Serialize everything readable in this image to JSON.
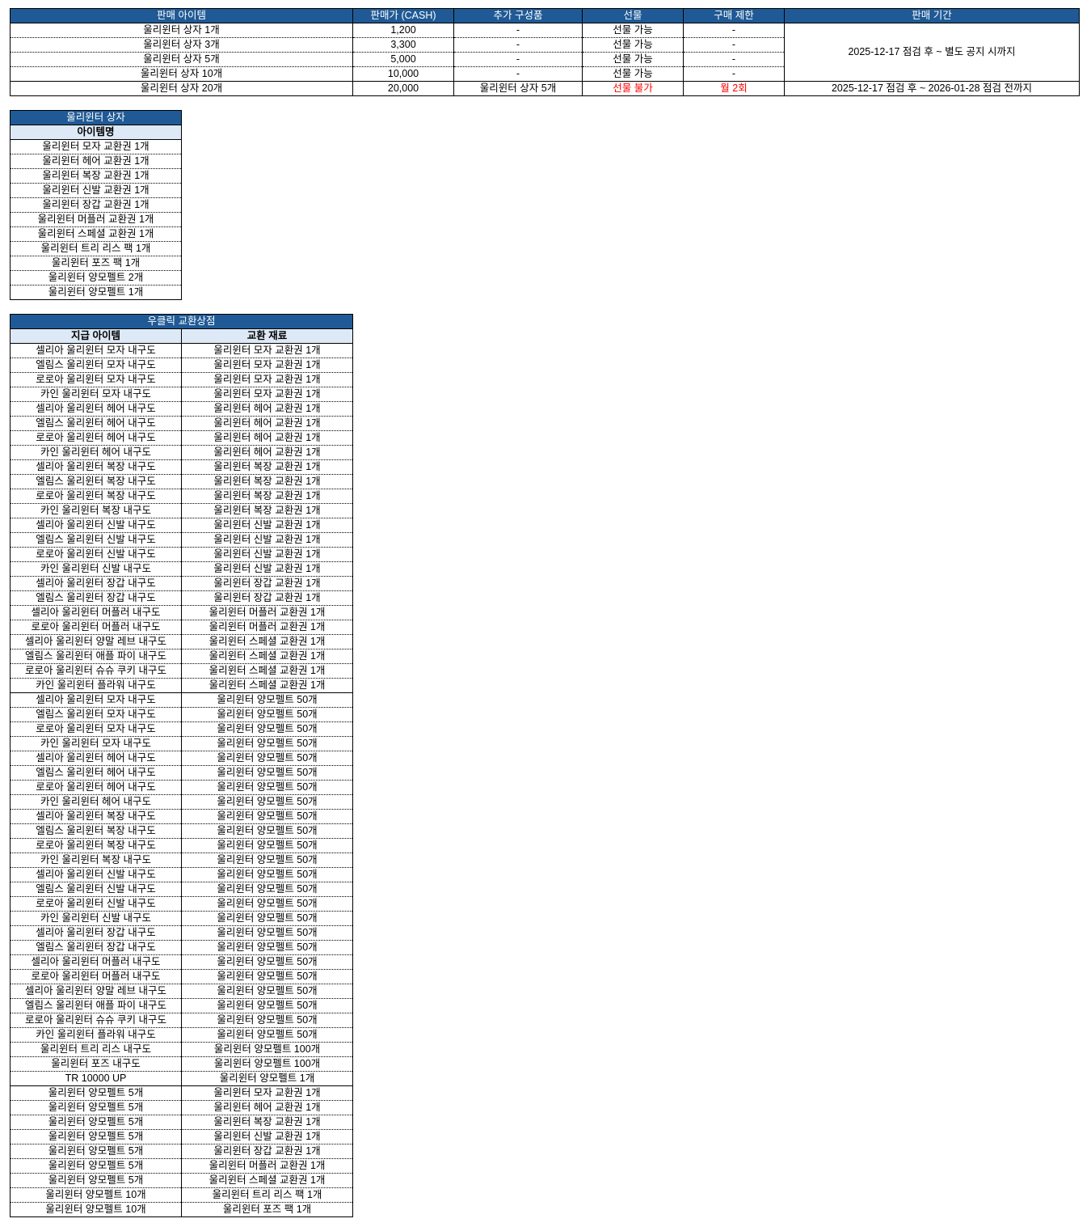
{
  "sales": {
    "headers": [
      "판매 아이템",
      "판매가 (CASH)",
      "추가 구성품",
      "선물",
      "구매 제한",
      "판매 기간"
    ],
    "rows": [
      {
        "item": "울리윈터 상자 1개",
        "price": "1,200",
        "extra": "-",
        "gift": "선물 가능",
        "limit": "-"
      },
      {
        "item": "울리윈터 상자 3개",
        "price": "3,300",
        "extra": "-",
        "gift": "선물 가능",
        "limit": "-"
      },
      {
        "item": "울리윈터 상자 5개",
        "price": "5,000",
        "extra": "-",
        "gift": "선물 가능",
        "limit": "-"
      },
      {
        "item": "울리윈터 상자 10개",
        "price": "10,000",
        "extra": "-",
        "gift": "선물 가능",
        "limit": "-"
      },
      {
        "item": "울리윈터 상자 20개",
        "price": "20,000",
        "extra": "울리윈터 상자 5개",
        "gift": "선물 불가",
        "limit": "월 2회"
      }
    ],
    "period_1": "2025-12-17 점검 후 ~ 별도 공지 시까지",
    "period_2": "2025-12-17 점검 후 ~ 2026-01-28 점검 전까지",
    "highlight_color": "#ff0000"
  },
  "box": {
    "title": "울리윈터 상자",
    "header": "아이템명",
    "items": [
      "울리윈터 모자 교환권 1개",
      "울리윈터 헤어 교환권 1개",
      "울리윈터 복장 교환권 1개",
      "울리윈터 신발 교환권 1개",
      "울리윈터 장갑 교환권 1개",
      "울리윈터 머플러 교환권 1개",
      "울리윈터 스페셜 교환권 1개",
      "울리윈터 트리 리스 팩 1개",
      "울리윈터 포즈 팩 1개",
      "울리윈터 양모펠트 2개",
      "울리윈터 양모펠트 1개"
    ]
  },
  "exchange": {
    "title": "우클릭 교환상점",
    "headers": [
      "지급 아이템",
      "교환 재료"
    ],
    "groups": [
      [
        [
          "셀리아 울리윈터 모자 내구도",
          "울리윈터 모자 교환권 1개"
        ],
        [
          "엘림스 울리윈터 모자 내구도",
          "울리윈터 모자 교환권 1개"
        ],
        [
          "로로아 울리윈터 모자 내구도",
          "울리윈터 모자 교환권 1개"
        ],
        [
          "카인 울리윈터 모자 내구도",
          "울리윈터 모자 교환권 1개"
        ],
        [
          "셀리아 울리윈터 헤어 내구도",
          "울리윈터 헤어 교환권 1개"
        ],
        [
          "엘림스 울리윈터 헤어 내구도",
          "울리윈터 헤어 교환권 1개"
        ],
        [
          "로로아 울리윈터 헤어 내구도",
          "울리윈터 헤어 교환권 1개"
        ],
        [
          "카인 울리윈터 헤어 내구도",
          "울리윈터 헤어 교환권 1개"
        ],
        [
          "셀리아 울리윈터 복장 내구도",
          "울리윈터 복장 교환권 1개"
        ],
        [
          "엘림스 울리윈터 복장 내구도",
          "울리윈터 복장 교환권 1개"
        ],
        [
          "로로아 울리윈터 복장 내구도",
          "울리윈터 복장 교환권 1개"
        ],
        [
          "카인 울리윈터 복장 내구도",
          "울리윈터 복장 교환권 1개"
        ],
        [
          "셀리아 울리윈터 신발 내구도",
          "울리윈터 신발 교환권 1개"
        ],
        [
          "엘림스 울리윈터 신발 내구도",
          "울리윈터 신발 교환권 1개"
        ],
        [
          "로로아 울리윈터 신발 내구도",
          "울리윈터 신발 교환권 1개"
        ],
        [
          "카인 울리윈터 신발 내구도",
          "울리윈터 신발 교환권 1개"
        ],
        [
          "셀리아 울리윈터 장갑 내구도",
          "울리윈터 장갑 교환권 1개"
        ],
        [
          "엘림스 울리윈터 장갑 내구도",
          "울리윈터 장갑 교환권 1개"
        ],
        [
          "셀리아 울리윈터 머플러 내구도",
          "울리윈터 머플러 교환권 1개"
        ],
        [
          "로로아 울리윈터 머플러 내구도",
          "울리윈터 머플러 교환권 1개"
        ],
        [
          "셀리아 울리윈터 양말 레브 내구도",
          "울리윈터 스페셜 교환권 1개"
        ],
        [
          "엘림스 울리윈터 애플 파이 내구도",
          "울리윈터 스페셜 교환권 1개"
        ],
        [
          "로로아 울리윈터 슈슈 쿠키 내구도",
          "울리윈터 스페셜 교환권 1개"
        ],
        [
          "카인 울리윈터 플라워 내구도",
          "울리윈터 스페셜 교환권 1개"
        ]
      ],
      [
        [
          "셀리아 울리윈터 모자 내구도",
          "울리윈터 양모펠트 50개"
        ],
        [
          "엘림스 울리윈터 모자 내구도",
          "울리윈터 양모펠트 50개"
        ],
        [
          "로로아 울리윈터 모자 내구도",
          "울리윈터 양모펠트 50개"
        ],
        [
          "카인 울리윈터 모자 내구도",
          "울리윈터 양모펠트 50개"
        ],
        [
          "셀리아 울리윈터 헤어 내구도",
          "울리윈터 양모펠트 50개"
        ],
        [
          "엘림스 울리윈터 헤어 내구도",
          "울리윈터 양모펠트 50개"
        ],
        [
          "로로아 울리윈터 헤어 내구도",
          "울리윈터 양모펠트 50개"
        ],
        [
          "카인 울리윈터 헤어 내구도",
          "울리윈터 양모펠트 50개"
        ],
        [
          "셀리아 울리윈터 복장 내구도",
          "울리윈터 양모펠트 50개"
        ],
        [
          "엘림스 울리윈터 복장 내구도",
          "울리윈터 양모펠트 50개"
        ],
        [
          "로로아 울리윈터 복장 내구도",
          "울리윈터 양모펠트 50개"
        ],
        [
          "카인 울리윈터 복장 내구도",
          "울리윈터 양모펠트 50개"
        ],
        [
          "셀리아 울리윈터 신발 내구도",
          "울리윈터 양모펠트 50개"
        ],
        [
          "엘림스 울리윈터 신발 내구도",
          "울리윈터 양모펠트 50개"
        ],
        [
          "로로아 울리윈터 신발 내구도",
          "울리윈터 양모펠트 50개"
        ],
        [
          "카인 울리윈터 신발 내구도",
          "울리윈터 양모펠트 50개"
        ],
        [
          "셀리아 울리윈터 장갑 내구도",
          "울리윈터 양모펠트 50개"
        ],
        [
          "엘림스 울리윈터 장갑 내구도",
          "울리윈터 양모펠트 50개"
        ],
        [
          "셀리아 울리윈터 머플러 내구도",
          "울리윈터 양모펠트 50개"
        ],
        [
          "로로아 울리윈터 머플러 내구도",
          "울리윈터 양모펠트 50개"
        ],
        [
          "셀리아 울리윈터 양말 레브 내구도",
          "울리윈터 양모펠트 50개"
        ],
        [
          "엘림스 울리윈터 애플 파이 내구도",
          "울리윈터 양모펠트 50개"
        ],
        [
          "로로아 울리윈터 슈슈 쿠키 내구도",
          "울리윈터 양모펠트 50개"
        ],
        [
          "카인 울리윈터 플라워 내구도",
          "울리윈터 양모펠트 50개"
        ],
        [
          "울리윈터 트리 리스 내구도",
          "울리윈터 양모펠트 100개"
        ],
        [
          "울리윈터 포즈 내구도",
          "울리윈터 양모펠트 100개"
        ],
        [
          "TR 10000 UP",
          "울리윈터 양모펠트 1개"
        ]
      ],
      [
        [
          "울리윈터 양모펠트 5개",
          "울리윈터 모자 교환권 1개"
        ],
        [
          "울리윈터 양모펠트 5개",
          "울리윈터 헤어 교환권 1개"
        ],
        [
          "울리윈터 양모펠트 5개",
          "울리윈터 복장 교환권 1개"
        ],
        [
          "울리윈터 양모펠트 5개",
          "울리윈터 신발 교환권 1개"
        ],
        [
          "울리윈터 양모펠트 5개",
          "울리윈터 장갑 교환권 1개"
        ],
        [
          "울리윈터 양모펠트 5개",
          "울리윈터 머플러 교환권 1개"
        ],
        [
          "울리윈터 양모펠트 5개",
          "울리윈터 스페셜 교환권 1개"
        ],
        [
          "울리윈터 양모펠트 10개",
          "울리윈터 트리 리스 팩 1개"
        ],
        [
          "울리윈터 양모펠트 10개",
          "울리윈터 포즈 팩 1개"
        ]
      ]
    ]
  }
}
